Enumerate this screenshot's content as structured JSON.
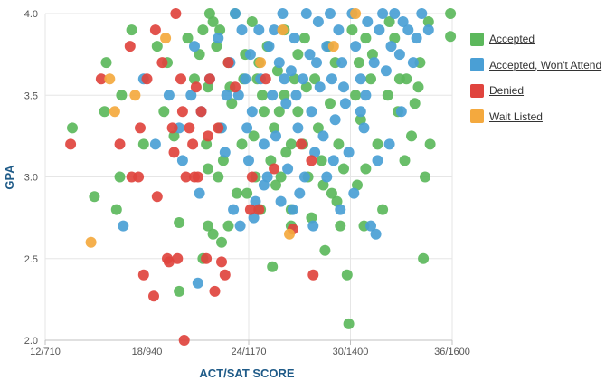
{
  "chart_data": {
    "type": "scatter",
    "xlabel": "ACT/SAT SCORE",
    "ylabel": "GPA",
    "x_ticks": [
      "12/710",
      "18/940",
      "24/1170",
      "30/1400",
      "36/1600"
    ],
    "x_tick_values": [
      12,
      18,
      24,
      30,
      36
    ],
    "xlim": [
      12,
      36
    ],
    "y_ticks": [
      "2.0",
      "2.5",
      "3.0",
      "3.5",
      "4.0"
    ],
    "y_tick_values": [
      2.0,
      2.5,
      3.0,
      3.5,
      4.0
    ],
    "ylim": [
      2.0,
      4.0
    ],
    "grid": true,
    "legend_position": "right",
    "series": [
      {
        "name": "Accepted",
        "color": "#5cb85c",
        "points": [
          [
            13.6,
            3.3
          ],
          [
            14.9,
            2.88
          ],
          [
            15.6,
            3.7
          ],
          [
            15.5,
            3.4
          ],
          [
            16.2,
            2.8
          ],
          [
            16.5,
            3.5
          ],
          [
            16.4,
            3.0
          ],
          [
            17.1,
            3.9
          ],
          [
            17.8,
            3.2
          ],
          [
            18.6,
            3.8
          ],
          [
            19.2,
            3.7
          ],
          [
            19.0,
            3.4
          ],
          [
            19.6,
            3.25
          ],
          [
            19.9,
            2.3
          ],
          [
            19.9,
            2.72
          ],
          [
            20.4,
            3.85
          ],
          [
            20.8,
            3.6
          ],
          [
            21.3,
            3.9
          ],
          [
            21.1,
            3.75
          ],
          [
            21.6,
            3.55
          ],
          [
            21.7,
            4.0
          ],
          [
            22.1,
            3.8
          ],
          [
            21.5,
            3.2
          ],
          [
            22.3,
            3.3
          ],
          [
            21.6,
            2.7
          ],
          [
            21.3,
            2.5
          ],
          [
            21.9,
            2.65
          ],
          [
            21.6,
            3.05
          ],
          [
            22.3,
            3.9
          ],
          [
            22.8,
            3.7
          ],
          [
            22.5,
            3.1
          ],
          [
            22.4,
            2.6
          ],
          [
            23.2,
            4.0
          ],
          [
            23.0,
            3.45
          ],
          [
            23.3,
            2.9
          ],
          [
            22.8,
            2.7
          ],
          [
            23.7,
            3.6
          ],
          [
            23.6,
            3.2
          ],
          [
            23.9,
            2.9
          ],
          [
            24.2,
            3.95
          ],
          [
            24.5,
            3.6
          ],
          [
            24.3,
            3.25
          ],
          [
            24.4,
            3.0
          ],
          [
            24.7,
            2.8
          ],
          [
            25.1,
            3.8
          ],
          [
            24.9,
            3.4
          ],
          [
            25.3,
            3.1
          ],
          [
            25.4,
            2.45
          ],
          [
            25.7,
            3.65
          ],
          [
            25.5,
            3.3
          ],
          [
            26.1,
            3.9
          ],
          [
            26.1,
            3.5
          ],
          [
            25.9,
            3.0
          ],
          [
            26.5,
            3.2
          ],
          [
            26.5,
            2.8
          ],
          [
            26.5,
            2.7
          ],
          [
            26.9,
            3.75
          ],
          [
            26.9,
            3.4
          ],
          [
            27.3,
            3.85
          ],
          [
            27.5,
            3.0
          ],
          [
            27.7,
            2.75
          ],
          [
            27.9,
            3.6
          ],
          [
            28.1,
            3.3
          ],
          [
            28.3,
            3.1
          ],
          [
            28.5,
            2.55
          ],
          [
            28.7,
            3.8
          ],
          [
            28.8,
            3.45
          ],
          [
            28.9,
            2.9
          ],
          [
            29.1,
            3.7
          ],
          [
            29.3,
            3.2
          ],
          [
            29.4,
            2.7
          ],
          [
            29.8,
            2.4
          ],
          [
            29.9,
            2.1
          ],
          [
            30.1,
            3.9
          ],
          [
            30.3,
            3.5
          ],
          [
            30.4,
            2.95
          ],
          [
            30.6,
            3.35
          ],
          [
            30.8,
            2.7
          ],
          [
            30.9,
            3.05
          ],
          [
            31.3,
            3.75
          ],
          [
            31.6,
            3.2
          ],
          [
            31.9,
            2.8
          ],
          [
            32.2,
            3.5
          ],
          [
            32.3,
            3.95
          ],
          [
            32.6,
            3.85
          ],
          [
            32.8,
            3.4
          ],
          [
            33.3,
            3.6
          ],
          [
            33.6,
            3.25
          ],
          [
            34.1,
            3.7
          ],
          [
            34.3,
            2.5
          ],
          [
            34.4,
            3.0
          ],
          [
            34.6,
            3.95
          ],
          [
            34.7,
            3.2
          ],
          [
            35.9,
            4.0
          ],
          [
            35.9,
            3.86
          ],
          [
            34.0,
            3.55
          ],
          [
            33.8,
            3.45
          ],
          [
            31.2,
            3.6
          ],
          [
            30.5,
            3.7
          ],
          [
            29.6,
            3.05
          ],
          [
            27.2,
            3.2
          ],
          [
            26.2,
            3.15
          ],
          [
            25.8,
            3.4
          ],
          [
            24.8,
            3.5
          ],
          [
            23.8,
            3.75
          ],
          [
            22.9,
            3.55
          ],
          [
            22.2,
            3.0
          ],
          [
            21.9,
            3.95
          ],
          [
            28.4,
            2.95
          ],
          [
            29.2,
            2.85
          ],
          [
            27.4,
            3.55
          ],
          [
            26.7,
            3.6
          ],
          [
            25.6,
            2.95
          ],
          [
            24.6,
            3.7
          ],
          [
            30.9,
            3.85
          ],
          [
            32.9,
            3.6
          ],
          [
            33.2,
            3.1
          ]
        ]
      },
      {
        "name": "Accepted, Won't Attend",
        "color": "#4a9fd5",
        "points": [
          [
            16.6,
            2.7
          ],
          [
            17.8,
            3.6
          ],
          [
            18.5,
            3.2
          ],
          [
            19.3,
            3.5
          ],
          [
            19.9,
            3.3
          ],
          [
            20.1,
            3.1
          ],
          [
            20.6,
            3.5
          ],
          [
            20.8,
            3.8
          ],
          [
            21.2,
            3.4
          ],
          [
            21.1,
            2.9
          ],
          [
            21.0,
            2.35
          ],
          [
            21.7,
            3.6
          ],
          [
            22.2,
            3.85
          ],
          [
            22.4,
            3.3
          ],
          [
            22.7,
            3.5
          ],
          [
            22.9,
            3.7
          ],
          [
            23.1,
            2.8
          ],
          [
            23.2,
            4.0
          ],
          [
            23.4,
            3.5
          ],
          [
            23.6,
            3.9
          ],
          [
            23.8,
            3.6
          ],
          [
            23.9,
            3.3
          ],
          [
            24.1,
            3.75
          ],
          [
            24.2,
            3.4
          ],
          [
            24.3,
            2.75
          ],
          [
            24.6,
            3.9
          ],
          [
            24.7,
            3.6
          ],
          [
            24.9,
            3.2
          ],
          [
            24.9,
            2.95
          ],
          [
            25.2,
            3.8
          ],
          [
            25.4,
            3.5
          ],
          [
            25.6,
            3.25
          ],
          [
            25.8,
            3.7
          ],
          [
            26.0,
            4.0
          ],
          [
            26.2,
            3.45
          ],
          [
            26.3,
            3.05
          ],
          [
            26.5,
            3.65
          ],
          [
            26.7,
            3.85
          ],
          [
            26.9,
            3.3
          ],
          [
            27.0,
            2.9
          ],
          [
            27.2,
            3.6
          ],
          [
            27.4,
            4.0
          ],
          [
            27.6,
            3.75
          ],
          [
            27.7,
            3.4
          ],
          [
            27.9,
            3.15
          ],
          [
            28.1,
            3.95
          ],
          [
            28.2,
            3.55
          ],
          [
            28.4,
            3.25
          ],
          [
            28.6,
            3.8
          ],
          [
            28.8,
            4.0
          ],
          [
            28.9,
            3.6
          ],
          [
            29.1,
            3.35
          ],
          [
            29.3,
            3.9
          ],
          [
            29.5,
            3.7
          ],
          [
            29.7,
            3.45
          ],
          [
            29.9,
            3.15
          ],
          [
            30.1,
            4.0
          ],
          [
            30.3,
            3.8
          ],
          [
            30.6,
            3.6
          ],
          [
            30.8,
            3.3
          ],
          [
            31.0,
            3.95
          ],
          [
            31.2,
            2.7
          ],
          [
            31.4,
            3.7
          ],
          [
            31.5,
            2.65
          ],
          [
            31.7,
            3.9
          ],
          [
            31.9,
            4.0
          ],
          [
            32.1,
            3.65
          ],
          [
            32.4,
            3.8
          ],
          [
            32.6,
            4.0
          ],
          [
            32.9,
            3.75
          ],
          [
            33.1,
            3.95
          ],
          [
            33.4,
            3.9
          ],
          [
            33.7,
            3.7
          ],
          [
            33.9,
            3.85
          ],
          [
            34.2,
            4.0
          ],
          [
            34.6,
            3.9
          ],
          [
            30.2,
            2.9
          ],
          [
            29.4,
            2.8
          ],
          [
            28.6,
            3.0
          ],
          [
            27.8,
            2.7
          ],
          [
            26.6,
            2.8
          ],
          [
            25.9,
            2.85
          ],
          [
            25.1,
            3.0
          ],
          [
            24.4,
            2.85
          ],
          [
            23.5,
            2.7
          ],
          [
            31.6,
            3.1
          ],
          [
            32.3,
            3.2
          ],
          [
            33.0,
            3.4
          ],
          [
            30.6,
            3.4
          ],
          [
            29.0,
            3.1
          ],
          [
            27.3,
            3.0
          ],
          [
            26.1,
            3.6
          ],
          [
            24.0,
            3.1
          ],
          [
            22.6,
            3.15
          ],
          [
            25.5,
            3.9
          ],
          [
            26.8,
            3.5
          ],
          [
            28.0,
            3.7
          ],
          [
            29.6,
            3.55
          ],
          [
            30.9,
            3.5
          ]
        ]
      },
      {
        "name": "Denied",
        "color": "#e0443e",
        "points": [
          [
            13.5,
            3.2
          ],
          [
            15.3,
            3.6
          ],
          [
            16.4,
            3.2
          ],
          [
            17.0,
            3.8
          ],
          [
            17.6,
            3.3
          ],
          [
            17.5,
            3.0
          ],
          [
            17.8,
            2.4
          ],
          [
            18.4,
            2.27
          ],
          [
            18.5,
            3.9
          ],
          [
            18.6,
            2.88
          ],
          [
            18.9,
            3.7
          ],
          [
            19.2,
            2.5
          ],
          [
            19.3,
            2.48
          ],
          [
            19.5,
            3.3
          ],
          [
            19.6,
            3.15
          ],
          [
            19.7,
            4.0
          ],
          [
            19.8,
            2.5
          ],
          [
            20.0,
            3.6
          ],
          [
            20.1,
            3.4
          ],
          [
            20.2,
            2.0
          ],
          [
            20.3,
            3.0
          ],
          [
            20.5,
            3.3
          ],
          [
            20.7,
            3.2
          ],
          [
            20.8,
            3.0
          ],
          [
            20.9,
            3.55
          ],
          [
            21.0,
            3.0
          ],
          [
            21.2,
            3.4
          ],
          [
            21.5,
            2.5
          ],
          [
            21.7,
            3.6
          ],
          [
            22.0,
            2.3
          ],
          [
            22.2,
            3.3
          ],
          [
            22.4,
            2.48
          ],
          [
            22.6,
            2.4
          ],
          [
            23.2,
            3.55
          ],
          [
            24.1,
            2.8
          ],
          [
            24.2,
            3.0
          ],
          [
            24.6,
            2.8
          ],
          [
            25.0,
            3.6
          ],
          [
            25.5,
            3.05
          ],
          [
            26.6,
            2.68
          ],
          [
            27.1,
            3.2
          ],
          [
            27.7,
            3.1
          ],
          [
            27.8,
            2.4
          ],
          [
            18.0,
            3.6
          ],
          [
            17.1,
            3.0
          ],
          [
            21.6,
            3.25
          ],
          [
            22.8,
            3.7
          ]
        ]
      },
      {
        "name": "Wait Listed",
        "color": "#f4a93e",
        "points": [
          [
            14.7,
            2.6
          ],
          [
            15.8,
            3.6
          ],
          [
            16.1,
            3.4
          ],
          [
            17.3,
            3.5
          ],
          [
            19.1,
            3.85
          ],
          [
            24.7,
            3.7
          ],
          [
            26.0,
            3.9
          ],
          [
            26.4,
            2.65
          ],
          [
            30.3,
            4.0
          ],
          [
            29.0,
            3.8
          ]
        ]
      }
    ]
  }
}
